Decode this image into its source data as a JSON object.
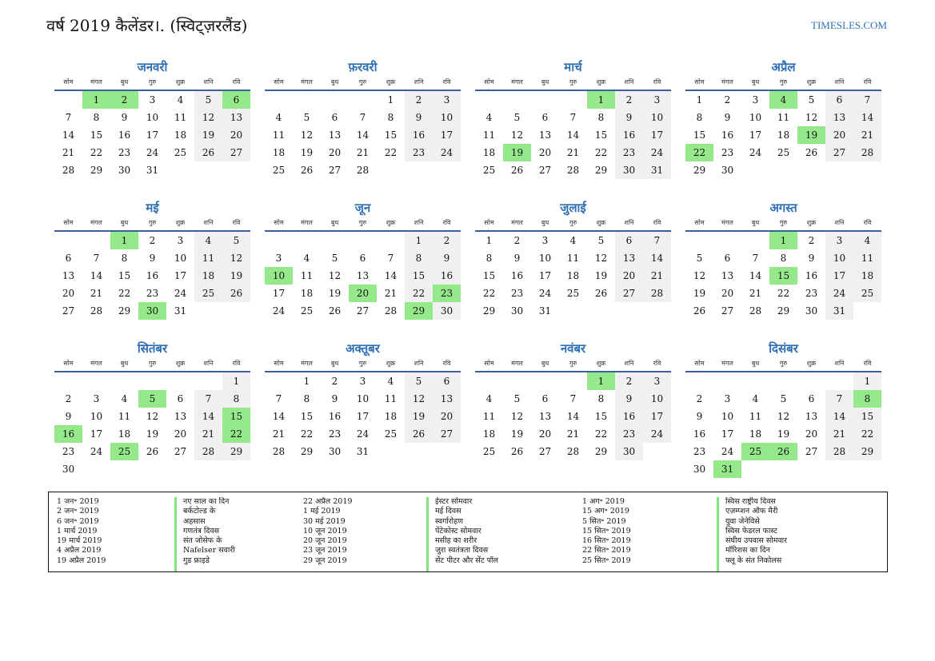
{
  "title": "वर्ष 2019 कैलेंडर।. (स्विट्ज़रलैंड)",
  "site": "TIMESLES.COM",
  "weekdays": [
    "सोम",
    "मंगल",
    "बुध",
    "गुरु",
    "शुक्र",
    "शनि",
    "रवि"
  ],
  "colors": {
    "accent": "#2f6fb5",
    "holiday": "#95e98b",
    "weekend": "#f0f0f0",
    "rule": "#3a5f9a"
  },
  "months": [
    {
      "name": "जनवरी",
      "offset": 1,
      "days": 31,
      "holidays": [
        1,
        2,
        6
      ]
    },
    {
      "name": "फ़रवरी",
      "offset": 4,
      "days": 28,
      "holidays": []
    },
    {
      "name": "मार्च",
      "offset": 4,
      "days": 31,
      "holidays": [
        1,
        19
      ]
    },
    {
      "name": "अप्रैल",
      "offset": 0,
      "days": 30,
      "holidays": [
        4,
        19,
        22
      ]
    },
    {
      "name": "मई",
      "offset": 2,
      "days": 31,
      "holidays": [
        1,
        30
      ]
    },
    {
      "name": "जून",
      "offset": 5,
      "days": 30,
      "holidays": [
        10,
        20,
        23,
        29
      ]
    },
    {
      "name": "जुलाई",
      "offset": 0,
      "days": 31,
      "holidays": []
    },
    {
      "name": "अगस्त",
      "offset": 3,
      "days": 31,
      "holidays": [
        1,
        15
      ]
    },
    {
      "name": "सितंबर",
      "offset": 6,
      "days": 30,
      "holidays": [
        5,
        15,
        16,
        22,
        25
      ]
    },
    {
      "name": "अक्तूबर",
      "offset": 1,
      "days": 31,
      "holidays": []
    },
    {
      "name": "नवंबर",
      "offset": 4,
      "days": 30,
      "holidays": [
        1
      ]
    },
    {
      "name": "दिसंबर",
      "offset": 6,
      "days": 31,
      "holidays": [
        8,
        25,
        26,
        31
      ]
    }
  ],
  "legend": [
    {
      "dates": [
        "1 जन॰ 2019",
        "2 जन॰ 2019",
        "6 जन॰ 2019",
        "1 मार्च 2019",
        "19 मार्च 2019",
        "4 अप्रैल 2019",
        "19 अप्रैल 2019"
      ],
      "names": [
        "नए साल का दिन",
        "बर्कटोल्ड के",
        "अहसास",
        "गणतंत्र दिवस",
        "संत जोसेफ के",
        "Nafelser सवारी",
        "गुड फ्राइडे"
      ]
    },
    {
      "dates": [
        "22 अप्रैल 2019",
        "1 मई 2019",
        "30 मई 2019",
        "10 जून 2019",
        "20 जून 2019",
        "23 जून 2019",
        "29 जून 2019"
      ],
      "names": [
        "ईस्टर सोमवार",
        "मई दिवस",
        "स्वर्गारोहण",
        "पेंटेकोस्ट सोमवार",
        "मसीह का शरीर",
        "जुरा स्वतंत्रता दिवस",
        "सेंट पीटर और सेंट पॉल"
      ]
    },
    {
      "dates": [
        "1 अग॰ 2019",
        "15 अग॰ 2019",
        "5 सित॰ 2019",
        "15 सित॰ 2019",
        "16 सित॰ 2019",
        "22 सित॰ 2019",
        "25 सित॰ 2019"
      ],
      "names": [
        "स्विस राष्ट्रीय दिवस",
        "एज़म्प्शन ऑफ मैरी",
        "युवा जेनेविसे",
        "स्विस फेडरल फास्ट",
        "संघीय उपवास सोमवार",
        "मॉरिशस का दिन",
        "फ्लू के संत निकोलस"
      ]
    }
  ]
}
